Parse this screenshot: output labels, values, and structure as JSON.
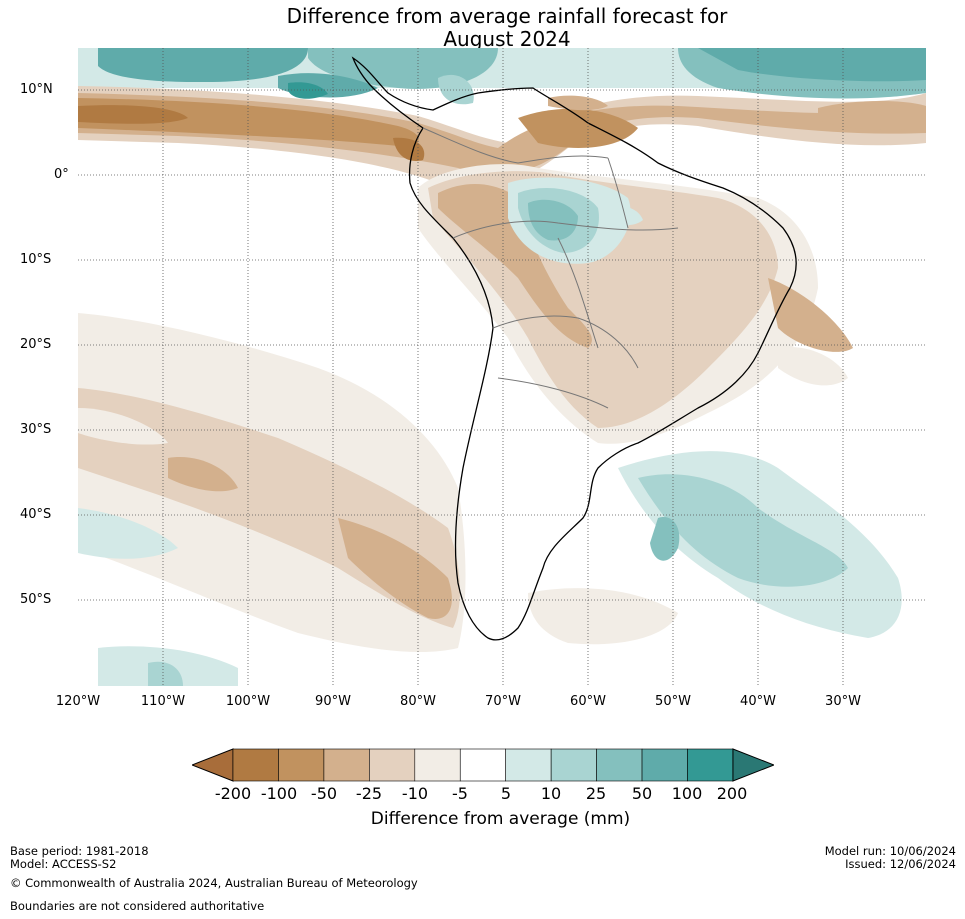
{
  "title": {
    "line1": "Difference from average rainfall forecast for",
    "line2": "August 2024"
  },
  "map": {
    "lat_labels": [
      "10°N",
      "0°",
      "10°S",
      "20°S",
      "30°S",
      "40°S",
      "50°S"
    ],
    "lon_labels": [
      "120°W",
      "110°W",
      "100°W",
      "90°W",
      "80°W",
      "70°W",
      "60°W",
      "50°W",
      "40°W",
      "30°W"
    ],
    "extent": {
      "lon_min": -120,
      "lon_max": -20,
      "lat_min": -60,
      "lat_max": 15
    }
  },
  "colorbar": {
    "ticks": [
      "-200",
      "-100",
      "-50",
      "-25",
      "-10",
      "-5",
      "5",
      "10",
      "25",
      "50",
      "100",
      "200"
    ],
    "colors": [
      "#a86d3a",
      "#b07a42",
      "#c1925f",
      "#d3b08d",
      "#e4d1bf",
      "#f2ede6",
      "#ffffff",
      "#d3e9e7",
      "#a9d4d2",
      "#84c0be",
      "#5fabaa",
      "#339994",
      "#2a7874"
    ],
    "label": "Difference from average (mm)"
  },
  "footer": {
    "base_period": "Base period: 1981-2018",
    "model": "Model: ACCESS-S2",
    "copyright": "© Commonwealth of Australia 2024, Australian Bureau of Meteorology",
    "boundaries": "Boundaries are not considered authoritative",
    "model_run": "Model run: 10/06/2024",
    "issued": "Issued: 12/06/2024"
  }
}
